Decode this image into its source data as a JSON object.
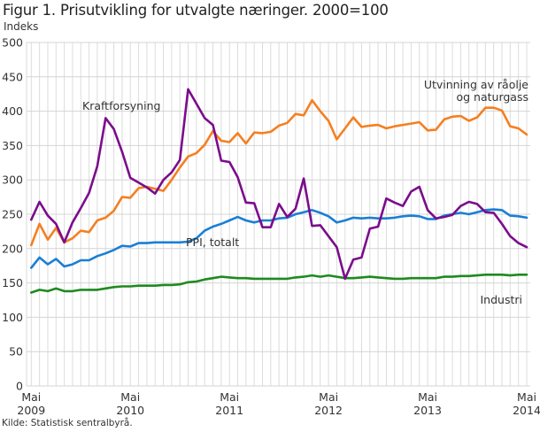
{
  "chart_data": {
    "type": "line",
    "title": "Figur 1. Prisutvikling for utvalgte næringer. 2000=100",
    "ylabel": "Indeks",
    "xlabel": "",
    "ylim": [
      0,
      500
    ],
    "yticks": [
      "0",
      "50",
      "100",
      "150",
      "200",
      "250",
      "300",
      "350",
      "400",
      "450",
      "500"
    ],
    "ytick_values": [
      0,
      50,
      100,
      150,
      200,
      250,
      300,
      350,
      400,
      450,
      500
    ],
    "x_period": "monthly, Mai 2009 – Mai 2014",
    "x_count": 61,
    "xticks": [
      {
        "index": 0,
        "line1": "Mai",
        "line2": "2009"
      },
      {
        "index": 12,
        "line1": "Mai",
        "line2": "2010"
      },
      {
        "index": 24,
        "line1": "Mai",
        "line2": "2011"
      },
      {
        "index": 36,
        "line1": "Mai",
        "line2": "2012"
      },
      {
        "index": 48,
        "line1": "Mai",
        "line2": "2013"
      },
      {
        "index": 60,
        "line1": "Mai",
        "line2": "2014"
      }
    ],
    "grid": true,
    "series": [
      {
        "name": "Utvinning av råolje og naturgass",
        "label_lines": [
          "Utvinning av råolje",
          "og naturgass"
        ],
        "color": "#f57f20",
        "values": [
          205,
          236,
          213,
          230,
          209,
          215,
          226,
          224,
          241,
          245,
          255,
          275,
          274,
          288,
          290,
          287,
          284,
          300,
          318,
          334,
          339,
          351,
          371,
          357,
          355,
          368,
          353,
          369,
          368,
          370,
          379,
          383,
          396,
          394,
          416,
          400,
          386,
          359,
          375,
          391,
          377,
          379,
          380,
          375,
          378,
          380,
          382,
          384,
          372,
          373,
          388,
          392,
          393,
          386,
          391,
          405,
          405,
          401,
          378,
          375,
          366
        ]
      },
      {
        "name": "Kraftforsyning",
        "label_lines": [
          "Kraftforsyning"
        ],
        "color": "#7b0c8c",
        "values": [
          242,
          268,
          248,
          236,
          209,
          238,
          259,
          281,
          320,
          390,
          374,
          341,
          303,
          296,
          289,
          280,
          300,
          311,
          329,
          432,
          411,
          390,
          380,
          328,
          326,
          304,
          267,
          266,
          231,
          231,
          265,
          246,
          258,
          302,
          233,
          234,
          218,
          202,
          156,
          184,
          187,
          229,
          232,
          273,
          267,
          262,
          283,
          290,
          256,
          244,
          246,
          249,
          262,
          268,
          265,
          253,
          252,
          236,
          218,
          208,
          202
        ]
      },
      {
        "name": "PPI, totalt",
        "label_lines": [
          "PPI, totalt"
        ],
        "color": "#1a7fd4",
        "values": [
          172,
          187,
          177,
          185,
          174,
          177,
          183,
          183,
          189,
          193,
          198,
          204,
          203,
          208,
          208,
          209,
          209,
          209,
          209,
          210,
          215,
          226,
          232,
          236,
          241,
          246,
          241,
          238,
          241,
          241,
          244,
          245,
          250,
          253,
          256,
          252,
          247,
          238,
          241,
          245,
          244,
          245,
          244,
          244,
          245,
          247,
          248,
          247,
          243,
          243,
          248,
          250,
          252,
          250,
          253,
          256,
          257,
          256,
          248,
          247,
          245
        ]
      },
      {
        "name": "Industri",
        "label_lines": [
          "Industri"
        ],
        "color": "#1e8a1e",
        "values": [
          136,
          140,
          138,
          142,
          138,
          138,
          140,
          140,
          140,
          142,
          144,
          145,
          145,
          146,
          146,
          146,
          147,
          147,
          148,
          151,
          152,
          155,
          157,
          159,
          158,
          157,
          157,
          156,
          156,
          156,
          156,
          156,
          158,
          159,
          161,
          159,
          161,
          159,
          157,
          157,
          158,
          159,
          158,
          157,
          156,
          156,
          157,
          157,
          157,
          157,
          159,
          159,
          160,
          160,
          161,
          162,
          162,
          162,
          161,
          162,
          162
        ]
      }
    ]
  },
  "source": "Kilde: Statistisk sentralbyrå."
}
